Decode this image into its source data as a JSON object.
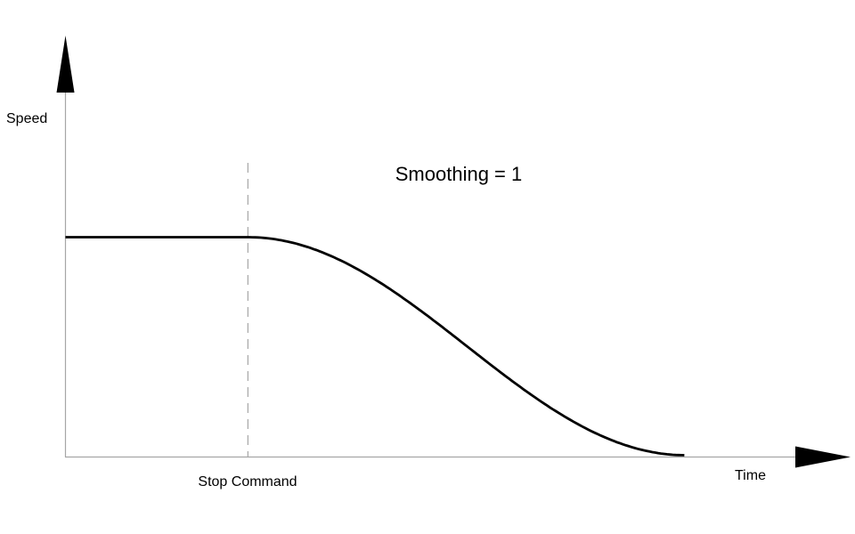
{
  "chart_data": {
    "type": "line",
    "title": "Smoothing = 1",
    "xlabel": "Time",
    "ylabel": "Speed",
    "x_range": [
      0,
      1
    ],
    "y_range": [
      0,
      1
    ],
    "grid": false,
    "legend": "none",
    "series": [
      {
        "name": "Speed",
        "shape": "flat-then-cosine-smoothstep-down",
        "flat_value": 1,
        "flat_until_x": 0.25,
        "reaches_zero_x": 0.85,
        "x": [
          0,
          0.25,
          0.3,
          0.35,
          0.4,
          0.45,
          0.5,
          0.55,
          0.6,
          0.65,
          0.7,
          0.75,
          0.8,
          0.85
        ],
        "y": [
          1,
          1,
          0.983,
          0.933,
          0.854,
          0.75,
          0.629,
          0.5,
          0.371,
          0.25,
          0.146,
          0.067,
          0.017,
          0
        ]
      }
    ],
    "annotations": [
      {
        "type": "vline",
        "style": "dashed",
        "x": 0.25,
        "label": "Stop Command"
      }
    ],
    "colors": {
      "curve": "#000000",
      "axis": "#a6a6a6",
      "dashed_line": "#ababab",
      "arrow": "#000000",
      "text": "#000000"
    }
  }
}
